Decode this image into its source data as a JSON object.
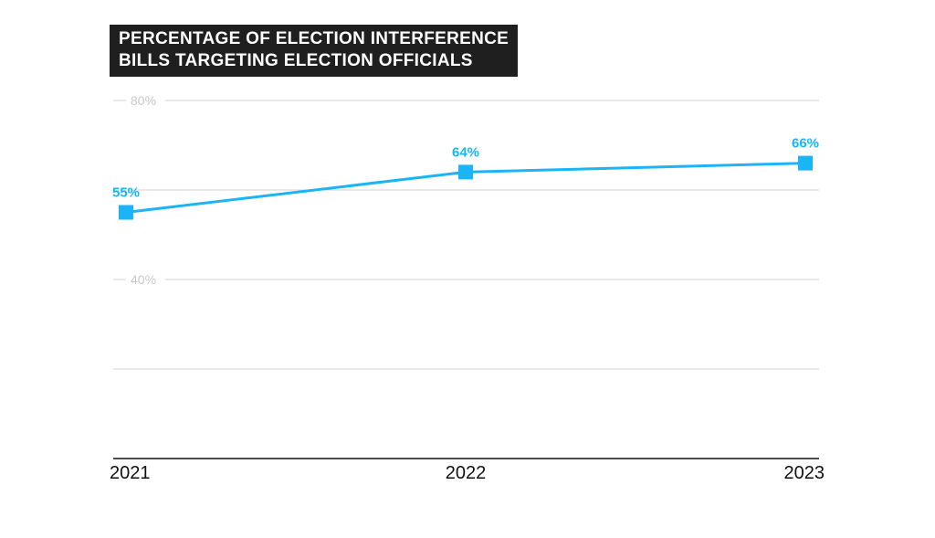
{
  "chart_data": {
    "type": "line",
    "title_lines": [
      "PERCENTAGE OF ELECTION INTERFERENCE",
      "BILLS TARGETING ELECTION OFFICIALS"
    ],
    "categories": [
      "2021",
      "2022",
      "2023"
    ],
    "series": [
      {
        "values": [
          55,
          64,
          66
        ],
        "labels": [
          "55%",
          "64%",
          "66%"
        ]
      }
    ],
    "y_ticks": [
      {
        "value": 80,
        "label": "80%"
      },
      {
        "value": 60,
        "label": ""
      },
      {
        "value": 40,
        "label": "40%"
      },
      {
        "value": 20,
        "label": ""
      },
      {
        "value": 0,
        "label": ""
      }
    ],
    "ylim": [
      0,
      80
    ],
    "grid": true,
    "line_color": "#1ab4f7",
    "grid_color": "#d3d3d3",
    "axis_color": "#111111"
  }
}
